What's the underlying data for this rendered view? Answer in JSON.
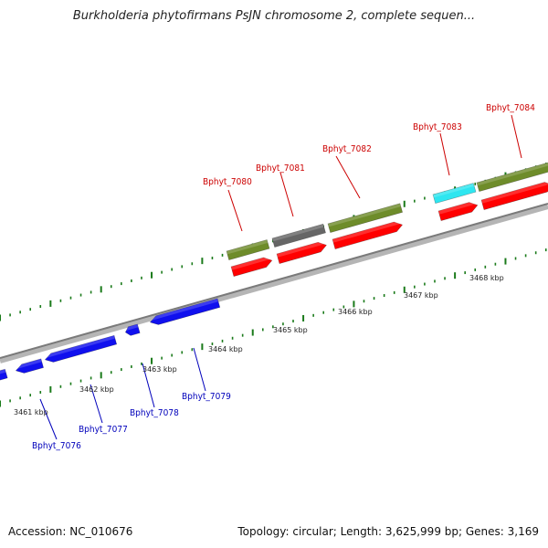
{
  "title": "Burkholderia phytofirmans PsJN chromosome 2, complete sequen...",
  "footer": {
    "accession": "Accession: NC_010676",
    "stats": "Topology: circular; Length: 3,625,999 bp; Genes: 3,169"
  },
  "colors": {
    "forward_cds": "#ff0000",
    "reverse_cds": "#1010ee",
    "olive": "#6e8c2a",
    "gray": "#666666",
    "cyan": "#2ee6f0",
    "tick": "#1a7a1a",
    "backbone": "#8c8c8c"
  },
  "scale_labels": [
    "3461 kbp",
    "3462 kbp",
    "3463 kbp",
    "3464 kbp",
    "3465 kbp",
    "3466 kbp",
    "3467 kbp",
    "3468 kbp"
  ],
  "genes_forward": [
    "Bphyt_7080",
    "Bphyt_7081",
    "Bphyt_7082",
    "Bphyt_7083",
    "Bphyt_7084"
  ],
  "genes_reverse": [
    "Bphyt_7076",
    "Bphyt_7077",
    "Bphyt_7078",
    "Bphyt_7079"
  ]
}
